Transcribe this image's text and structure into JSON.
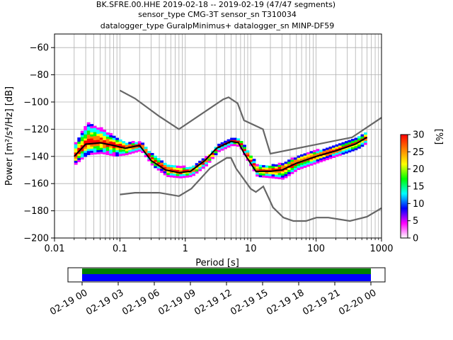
{
  "title_lines": [
    "BK.SFRE.00.HHE   2019-02-18 -- 2019-02-19  (47/47 segments)",
    "sensor_type CMG-3T sensor_sn T310034",
    "datalogger_type GuralpMinimus+ datalogger_sn MINP-DF59"
  ],
  "colors": {
    "noise_model": "#666666",
    "mean_curve": "#000000",
    "coverage_data": "#0000ff",
    "coverage_gaps": "#008000",
    "colormap": [
      "#ffffff",
      "#ff00ff",
      "#0000ff",
      "#00ffff",
      "#00ff00",
      "#ffff00",
      "#ff8000",
      "#ff0000"
    ]
  },
  "chart_data": {
    "type": "heatmap",
    "xlabel": "Period [s]",
    "ylabel": "Power [m²/s⁴/Hz] [dB]",
    "xscale": "log",
    "xlim": [
      0.01,
      1000
    ],
    "ylim": [
      -200,
      -50
    ],
    "grid": true,
    "x_ticks": [
      0.01,
      0.1,
      1,
      10,
      100,
      1000
    ],
    "x_tick_labels": [
      "0.01",
      "0.1",
      "1",
      "10",
      "100",
      "1000"
    ],
    "y_ticks": [
      -200,
      -180,
      -160,
      -140,
      -120,
      -100,
      -80,
      -60
    ],
    "y_tick_labels": [
      "−200",
      "−180",
      "−160",
      "−140",
      "−120",
      "−100",
      "−80",
      "−60"
    ],
    "colorbar": {
      "label": "[%]",
      "range": [
        0,
        30
      ],
      "ticks": [
        0,
        5,
        10,
        15,
        20,
        25,
        30
      ],
      "tick_labels": [
        "0",
        "5",
        "10",
        "15",
        "20",
        "25",
        "30"
      ]
    },
    "series": [
      {
        "role": "new-high-noise-model",
        "x": [
          0.1,
          0.17,
          0.4,
          0.8,
          3.8,
          4.6,
          6.3,
          7.9,
          15.4,
          20,
          354.8,
          1000
        ],
        "y": [
          -91.5,
          -97.4,
          -110.5,
          -120,
          -98,
          -96.5,
          -101,
          -113.5,
          -120,
          -138,
          -126,
          -111.5
        ]
      },
      {
        "role": "new-low-noise-model",
        "x": [
          0.1,
          0.17,
          0.4,
          0.8,
          1.24,
          2.4,
          4.3,
          5,
          6,
          10,
          12,
          15.6,
          21.9,
          31.6,
          45,
          70,
          101,
          154,
          328,
          600,
          1000
        ],
        "y": [
          -168,
          -166.7,
          -166.7,
          -169.2,
          -163.7,
          -148.6,
          -141.1,
          -141.1,
          -149,
          -163.8,
          -166.2,
          -162.1,
          -177.5,
          -185,
          -187.5,
          -187.5,
          -185,
          -185,
          -187.5,
          -184.4,
          -178
        ]
      },
      {
        "role": "mean-psd",
        "x": [
          0.02,
          0.03,
          0.05,
          0.08,
          0.12,
          0.2,
          0.3,
          0.5,
          0.8,
          1.2,
          2,
          3,
          5,
          6.5,
          8,
          12,
          20,
          30,
          50,
          100,
          200,
          400,
          600
        ],
        "y": [
          -140,
          -131,
          -130,
          -132,
          -134,
          -132,
          -143,
          -150,
          -152,
          -151,
          -143,
          -134,
          -129,
          -130,
          -138,
          -151,
          -151,
          -150,
          -145,
          -140,
          -136,
          -131,
          -126
        ]
      }
    ],
    "psd_histogram": {
      "x": [
        0.02,
        0.03,
        0.05,
        0.08,
        0.12,
        0.2,
        0.3,
        0.5,
        0.8,
        1.2,
        2,
        3,
        5,
        6.5,
        8,
        12,
        20,
        30,
        50,
        100,
        200,
        400,
        600
      ],
      "center": [
        -140,
        -131,
        -130,
        -132,
        -134,
        -132,
        -143,
        -150,
        -152,
        -151,
        -143,
        -134,
        -129,
        -130,
        -138,
        -151,
        -151,
        -150,
        -145,
        -140,
        -136,
        -131,
        -126
      ],
      "upper": [
        -130,
        -116,
        -120,
        -126,
        -130,
        -130,
        -139,
        -146,
        -148,
        -148,
        -141,
        -132,
        -127,
        -128,
        -134,
        -147,
        -147,
        -145,
        -140,
        -136,
        -132,
        -127,
        -121
      ],
      "lower": [
        -146,
        -139,
        -138,
        -140,
        -139,
        -136,
        -147,
        -155,
        -156,
        -155,
        -147,
        -137,
        -132,
        -133,
        -141,
        -155,
        -156,
        -157,
        -150,
        -145,
        -140,
        -135,
        -130
      ]
    },
    "coverage_timeline": {
      "x_tick_labels": [
        "02-19 00",
        "02-19 03",
        "02-19 06",
        "02-19 09",
        "02-19 12",
        "02-19 15",
        "02-19 18",
        "02-19 21",
        "02-20 00"
      ],
      "data_start_hours": 0,
      "data_end_hours": 24
    }
  }
}
